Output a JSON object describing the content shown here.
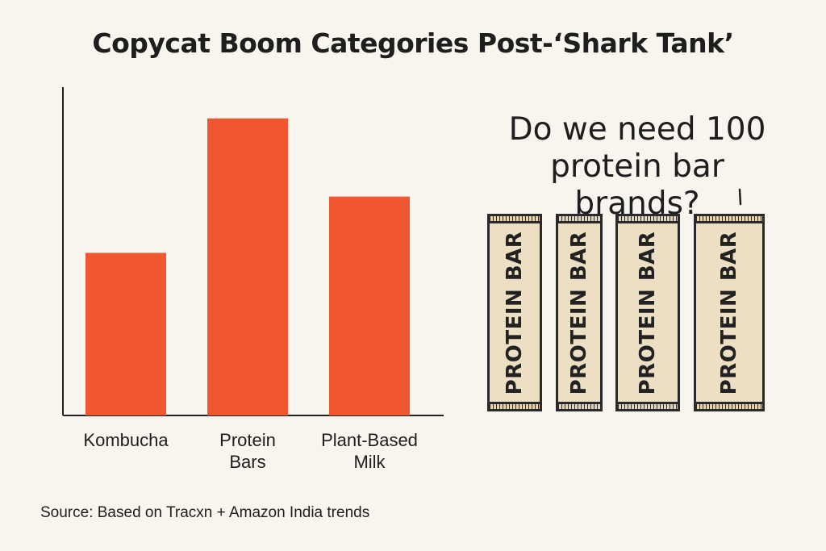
{
  "chart_data": {
    "type": "bar",
    "title": "Copycat Boom Categories Post-‘Shark Tank’",
    "categories": [
      "Kombucha",
      "Protein Bars",
      "Plant-Based Milk"
    ],
    "category_lines": [
      [
        "Kombucha"
      ],
      [
        "Protein",
        "Bars"
      ],
      [
        "Plant-Based",
        "Milk"
      ]
    ],
    "values": [
      52,
      95,
      70
    ],
    "ylim": [
      0,
      105
    ],
    "xlabel": "",
    "ylabel": "",
    "grid": false,
    "bar_color": "#f0562f",
    "axis_color": "#222222"
  },
  "callout": {
    "line1": "Do we need 100",
    "line2": "protein bar brands?"
  },
  "packages": [
    {
      "label": "PROTEIN BAR"
    },
    {
      "label": "PROTEIN BAR"
    },
    {
      "label": "PROTEIN BAR"
    },
    {
      "label": "PROTEIN BAR"
    }
  ],
  "source": "Source: Based on Tracxn + Amazon India trends"
}
